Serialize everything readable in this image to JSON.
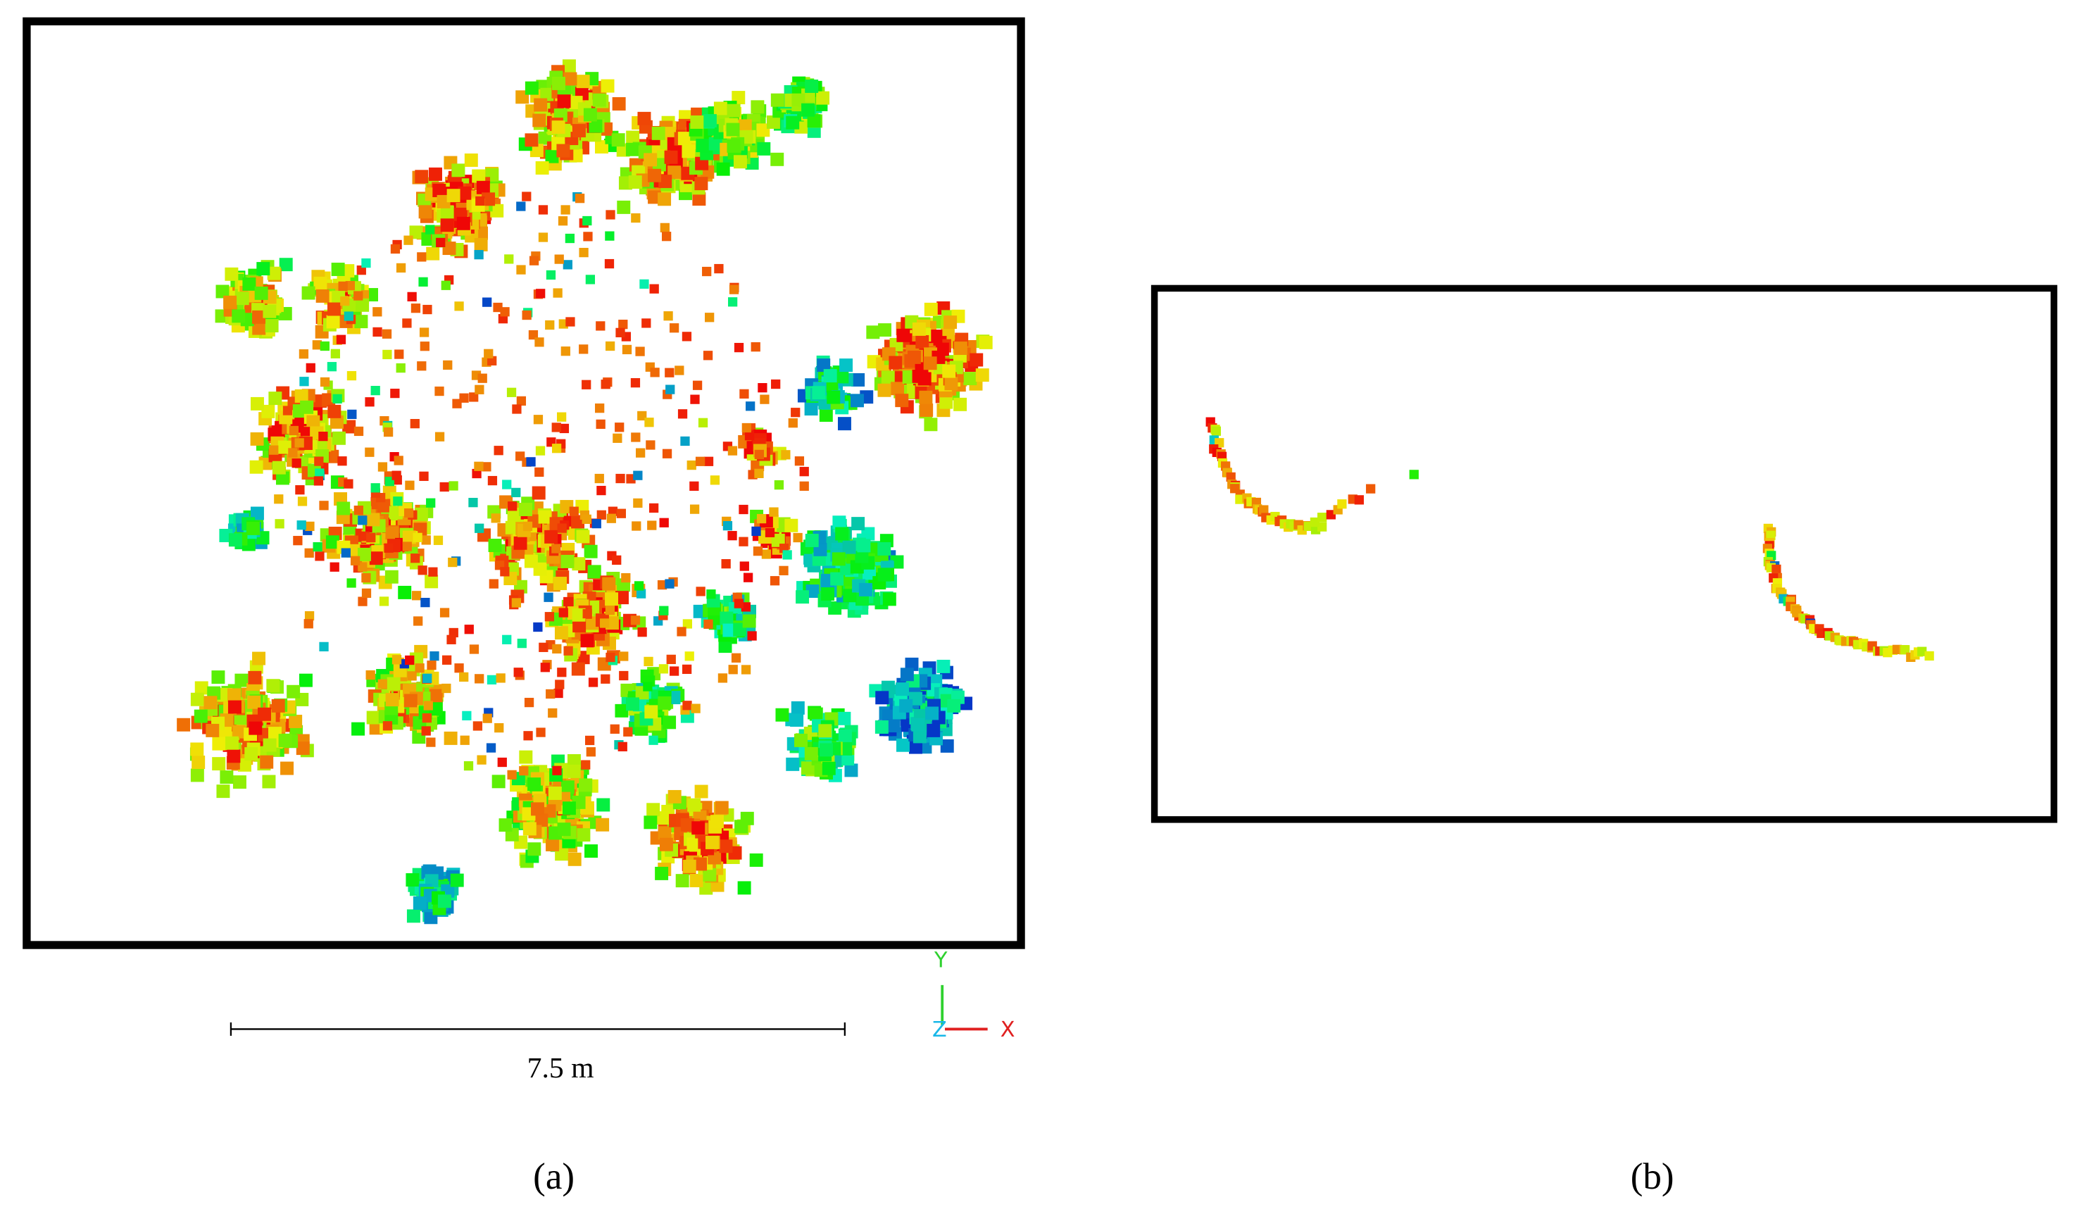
{
  "panels": [
    {
      "label": "(a)",
      "scale_bar": "7.5 m",
      "axes": {
        "y": "Y",
        "z": "Z",
        "x": "X"
      }
    },
    {
      "label": "(b)"
    }
  ]
}
